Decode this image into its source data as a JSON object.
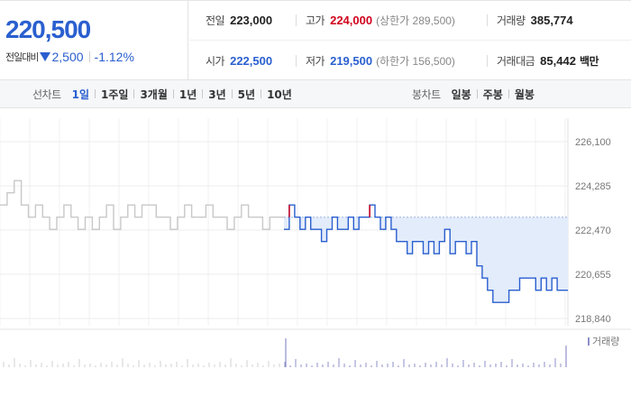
{
  "summary": {
    "current_price": "220,500",
    "change_label": "전일대비",
    "change_abs": "2,500",
    "change_pct": "-1.12%",
    "prev_close_label": "전일",
    "prev_close": "223,000",
    "high_label": "고가",
    "high": "224,000",
    "upper_limit": "(상한가 289,500)",
    "volume_label": "거래량",
    "volume": "385,774",
    "open_label": "시가",
    "open": "222,500",
    "low_label": "저가",
    "low": "219,500",
    "lower_limit": "(하한가 156,500)",
    "trade_value_label": "거래대금",
    "trade_value": "85,442",
    "trade_value_unit": "백만"
  },
  "line_tabs": {
    "title": "선차트",
    "items": [
      "1일",
      "1주일",
      "3개월",
      "1년",
      "3년",
      "5년",
      "10년"
    ],
    "active": "1일"
  },
  "candle_tabs": {
    "title": "봉차트",
    "items": [
      "일봉",
      "주봉",
      "월봉"
    ]
  },
  "colors": {
    "accent_blue": "#2a5fcf",
    "up_red": "#d0021b",
    "prev_day_gray": "#c8c8c8",
    "fill_blue": "#e3ecfb"
  },
  "chart_data": {
    "type": "line",
    "y_ticks": [
      "226,100",
      "224,285",
      "222,470",
      "220,655",
      "218,840"
    ],
    "ylim": [
      218840,
      226100
    ],
    "baseline": 223000,
    "volume_legend": "거래량",
    "prev_day_series": [
      223500,
      224000,
      224500,
      223500,
      223000,
      223500,
      223000,
      222500,
      223000,
      223500,
      223000,
      222500,
      223000,
      222500,
      223000,
      223500,
      222500,
      223000,
      223500,
      223000,
      223500,
      223500,
      223000,
      223000,
      222500,
      223000,
      223500,
      223000,
      223000,
      223500,
      223000,
      223000,
      222500,
      223000,
      223500,
      223000,
      223000,
      222500,
      223000,
      223000
    ],
    "today_series": [
      222500,
      223500,
      223000,
      222500,
      223000,
      222500,
      222500,
      222000,
      222500,
      223000,
      222500,
      222500,
      223000,
      222500,
      223000,
      223000,
      223500,
      223000,
      222500,
      223000,
      222500,
      222000,
      222000,
      221500,
      222000,
      222000,
      221500,
      222000,
      221500,
      222000,
      222500,
      221500,
      222000,
      222000,
      221500,
      222000,
      221000,
      220500,
      220000,
      219500,
      219500,
      219500,
      220000,
      220000,
      220500,
      220500,
      220500,
      220000,
      220500,
      220000,
      220500,
      220000,
      220000
    ]
  }
}
